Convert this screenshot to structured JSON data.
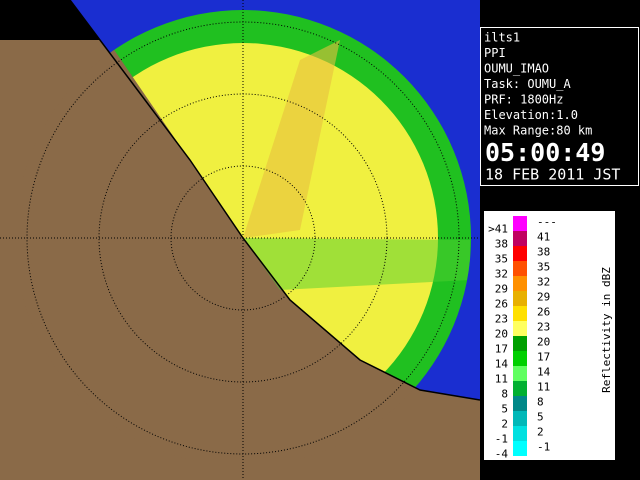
{
  "info": {
    "lines": [
      "ilts1",
      "PPI",
      "OUMU_IMAO",
      "Task: OUMU_A",
      "PRF: 1800Hz",
      "Elevation:1.0",
      "Max Range:80 km"
    ],
    "time": "05:00:49",
    "date": "18 FEB 2011 JST"
  },
  "legend": {
    "title": "Reflectivity in dBZ",
    "rows": [
      {
        "low": ">41",
        "high": "---",
        "color": "#ff00ff"
      },
      {
        "low": "38",
        "high": "41",
        "color": "#c00060"
      },
      {
        "low": "35",
        "high": "38",
        "color": "#ff0000"
      },
      {
        "low": "32",
        "high": "35",
        "color": "#ff5000"
      },
      {
        "low": "29",
        "high": "32",
        "color": "#ff9000"
      },
      {
        "low": "26",
        "high": "29",
        "color": "#e8b000"
      },
      {
        "low": "23",
        "high": "26",
        "color": "#ffe000"
      },
      {
        "low": "20",
        "high": "23",
        "color": "#ffff60"
      },
      {
        "low": "17",
        "high": "20",
        "color": "#00a000"
      },
      {
        "low": "14",
        "high": "17",
        "color": "#00d000"
      },
      {
        "low": "11",
        "high": "14",
        "color": "#60ff60"
      },
      {
        "low": "8",
        "high": "11",
        "color": "#00b030"
      },
      {
        "low": "5",
        "high": "8",
        "color": "#008888"
      },
      {
        "low": "2",
        "high": "5",
        "color": "#00b8b8"
      },
      {
        "low": "-1",
        "high": "2",
        "color": "#00e0e0"
      },
      {
        "low": "-4",
        "high": "-1",
        "color": "#00ffff"
      }
    ]
  }
}
